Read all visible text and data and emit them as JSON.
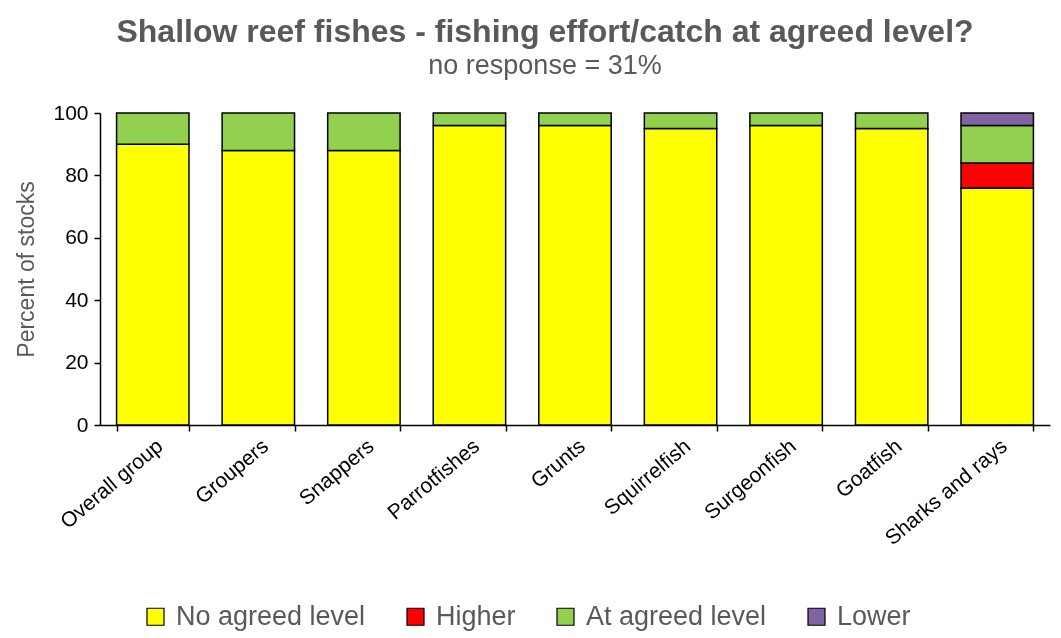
{
  "chart_data": {
    "type": "bar",
    "title": "Shallow reef fishes - fishing effort/catch at agreed level?",
    "subtitle": "no response = 31%",
    "ylabel": "Percent of stocks",
    "categories": [
      "Overall group",
      "Groupers",
      "Snappers",
      "Parrotfishes",
      "Grunts",
      "Squirrelfish",
      "Surgeonfish",
      "Goatfish",
      "Sharks and rays"
    ],
    "stacked": true,
    "series": [
      {
        "name": "No agreed level",
        "color": "#ffff00",
        "values": [
          90,
          88,
          88,
          96,
          96,
          95,
          96,
          95,
          76
        ]
      },
      {
        "name": "Higher",
        "color": "#ff0000",
        "values": [
          null,
          null,
          null,
          null,
          null,
          null,
          null,
          null,
          8
        ]
      },
      {
        "name": "At agreed level",
        "color": "#92d050",
        "values": [
          10,
          12,
          12,
          4,
          4,
          5,
          4,
          5,
          12
        ]
      },
      {
        "name": "Lower",
        "color": "#8064a2",
        "values": [
          null,
          null,
          null,
          null,
          null,
          null,
          null,
          null,
          4
        ]
      }
    ],
    "ylim": [
      0,
      100
    ],
    "yticks": [
      0,
      20,
      40,
      60,
      80,
      100
    ],
    "grid": false,
    "legend": "bottom"
  }
}
